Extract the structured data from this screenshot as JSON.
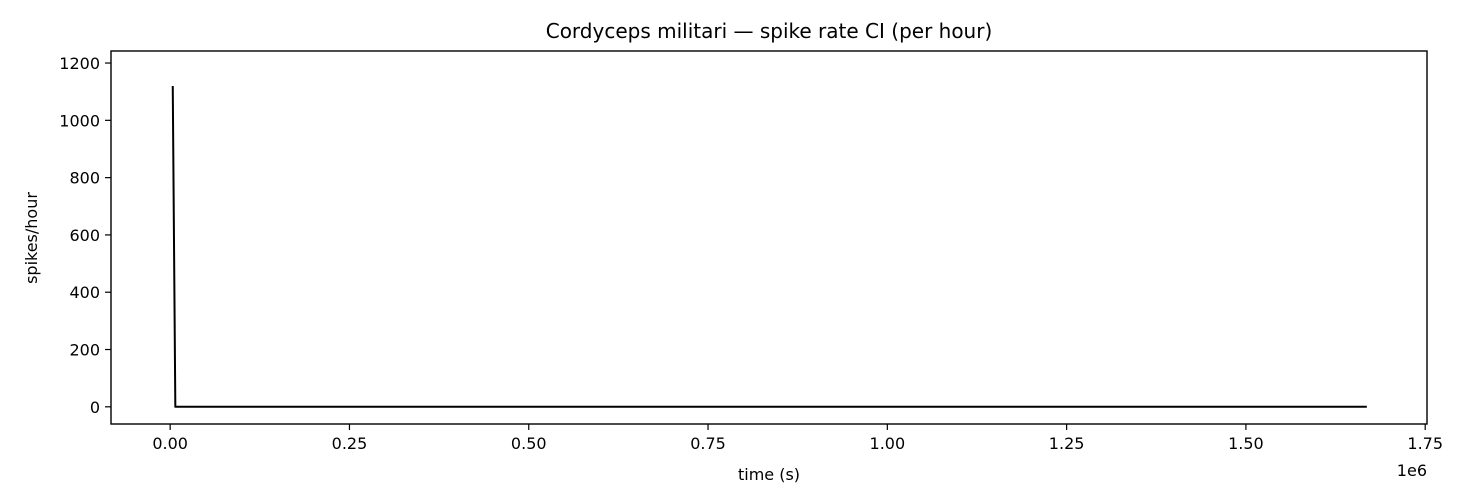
{
  "chart_data": {
    "type": "line",
    "title": "Cordyceps militari — spike rate CI (per hour)",
    "xlabel": "time (s)",
    "ylabel": "spikes/hour",
    "x_offset_label": "1e6",
    "xlim": [
      -0.0825,
      1.7525
    ],
    "ylim": [
      -60,
      1242
    ],
    "x_ticks": [
      0.0,
      0.25,
      0.5,
      0.75,
      1.0,
      1.25,
      1.5,
      1.75
    ],
    "x_tick_labels": [
      "0.00",
      "0.25",
      "0.50",
      "0.75",
      "1.00",
      "1.25",
      "1.50",
      "1.75"
    ],
    "y_ticks": [
      0,
      200,
      400,
      600,
      800,
      1000,
      1200
    ],
    "y_tick_labels": [
      "0",
      "200",
      "400",
      "600",
      "800",
      "1000",
      "1200"
    ],
    "grid": false,
    "series": [
      {
        "color": "#000000",
        "x": [
          0.0036,
          0.0072,
          0.025,
          0.5,
          1.0,
          1.5,
          1.6686
        ],
        "y": [
          1120,
          0,
          0,
          0,
          0,
          0,
          0
        ]
      }
    ]
  }
}
